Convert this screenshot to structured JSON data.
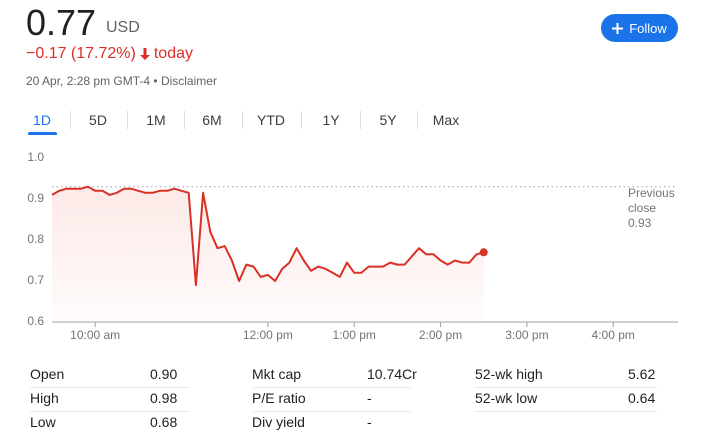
{
  "price": "0.77",
  "currency": "USD",
  "change": "−0.17 (17.72%)",
  "change_period": "today",
  "timestamp": "20 Apr, 2:28 pm GMT-4 • ",
  "disclaimer": "Disclaimer",
  "follow_button": "Follow",
  "tabs": [
    "1D",
    "5D",
    "1M",
    "6M",
    "YTD",
    "1Y",
    "5Y",
    "Max"
  ],
  "active_tab": 0,
  "chart_data": {
    "type": "line",
    "color": "#d93025",
    "x": [
      570,
      575,
      580,
      585,
      590,
      595,
      600,
      605,
      610,
      615,
      620,
      625,
      630,
      635,
      640,
      645,
      650,
      655,
      660,
      665,
      670,
      675,
      680,
      685,
      690,
      695,
      700,
      705,
      710,
      715,
      720,
      725,
      730,
      735,
      740,
      745,
      750,
      755,
      760,
      765,
      770,
      775,
      780,
      785,
      790,
      795,
      800,
      805,
      810,
      815,
      820,
      825,
      830,
      835,
      840,
      845,
      850,
      855,
      860,
      865,
      870
    ],
    "values": [
      0.91,
      0.92,
      0.925,
      0.925,
      0.925,
      0.93,
      0.92,
      0.92,
      0.91,
      0.915,
      0.925,
      0.925,
      0.92,
      0.915,
      0.915,
      0.92,
      0.92,
      0.925,
      0.92,
      0.915,
      0.69,
      0.915,
      0.82,
      0.78,
      0.785,
      0.75,
      0.7,
      0.74,
      0.735,
      0.71,
      0.715,
      0.7,
      0.73,
      0.745,
      0.78,
      0.75,
      0.725,
      0.735,
      0.73,
      0.72,
      0.71,
      0.745,
      0.72,
      0.72,
      0.735,
      0.735,
      0.735,
      0.745,
      0.74,
      0.74,
      0.76,
      0.78,
      0.765,
      0.765,
      0.75,
      0.74,
      0.75,
      0.745,
      0.745,
      0.765,
      0.77
    ],
    "xlim": [
      570,
      1005
    ],
    "xticks": [
      {
        "value": 600,
        "label": "10:00 am"
      },
      {
        "value": 720,
        "label": "12:00 pm"
      },
      {
        "value": 780,
        "label": "1:00 pm"
      },
      {
        "value": 840,
        "label": "2:00 pm"
      },
      {
        "value": 900,
        "label": "3:00 pm"
      },
      {
        "value": 960,
        "label": "4:00 pm"
      }
    ],
    "ylim": [
      0.6,
      1.0
    ],
    "yticks": [
      {
        "value": 1,
        "label": "1.0"
      },
      0.9,
      0.8,
      0.7,
      0.6
    ],
    "grid": false,
    "previous_close": 0.93,
    "previous_close_label": "Previous close"
  },
  "stats": [
    [
      [
        "Open",
        "0.90"
      ],
      [
        "High",
        "0.98"
      ],
      [
        "Low",
        "0.68"
      ]
    ],
    [
      [
        "Mkt cap",
        "10.74Cr"
      ],
      [
        "P/E ratio",
        "-"
      ],
      [
        "Div yield",
        "-"
      ]
    ],
    [
      [
        "52-wk high",
        "5.62"
      ],
      [
        "52-wk low",
        "0.64"
      ]
    ]
  ]
}
